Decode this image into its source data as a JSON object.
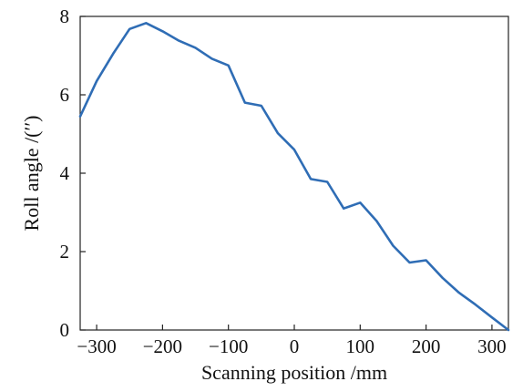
{
  "chart_data": {
    "type": "line",
    "title": "",
    "xlabel": "Scanning position /mm",
    "ylabel": "Roll angle /(′′)",
    "xlim": [
      -325,
      325
    ],
    "ylim": [
      0,
      8
    ],
    "xticks": [
      -300,
      -200,
      -100,
      0,
      100,
      200,
      300
    ],
    "yticks": [
      0,
      2,
      4,
      6,
      8
    ],
    "xtick_labels": [
      "−300",
      "−200",
      "−100",
      "0",
      "100",
      "200",
      "300"
    ],
    "ytick_labels": [
      "0",
      "2",
      "4",
      "6",
      "8"
    ],
    "grid": false,
    "legend": "none",
    "line_color": "#2f6db5",
    "series": [
      {
        "x": [
          -325,
          -300,
          -275,
          -250,
          -225,
          -200,
          -175,
          -150,
          -125,
          -100,
          -75,
          -50,
          -25,
          0,
          25,
          50,
          75,
          100,
          125,
          150,
          175,
          200,
          225,
          250,
          275,
          300,
          325
        ],
        "values": [
          5.45,
          6.35,
          7.05,
          7.68,
          7.83,
          7.62,
          7.38,
          7.2,
          6.92,
          6.75,
          5.8,
          5.72,
          5.02,
          4.6,
          3.85,
          3.78,
          3.1,
          3.25,
          2.78,
          2.15,
          1.72,
          1.78,
          1.33,
          0.95,
          0.65,
          0.32,
          0.0
        ]
      }
    ]
  }
}
